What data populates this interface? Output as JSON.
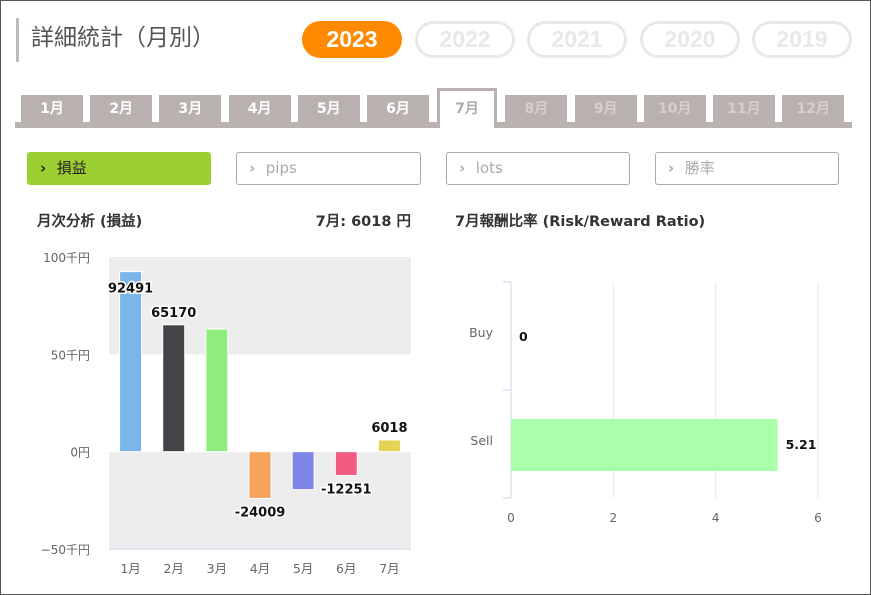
{
  "header": {
    "title": "詳細統計（月別）",
    "years": [
      "2023",
      "2022",
      "2021",
      "2020",
      "2019"
    ],
    "active_year": "2023"
  },
  "months": {
    "tabs": [
      "1月",
      "2月",
      "3月",
      "4月",
      "5月",
      "6月",
      "7月",
      "8月",
      "9月",
      "10月",
      "11月",
      "12月"
    ],
    "active": "7月"
  },
  "filters": [
    {
      "label": "損益",
      "active": true
    },
    {
      "label": "pips",
      "active": false
    },
    {
      "label": "lots",
      "active": false
    },
    {
      "label": "勝率",
      "active": false
    }
  ],
  "monthly": {
    "title": "月次分析 (損益)",
    "summary": "7月:  6018 円"
  },
  "ratio": {
    "title": "7月報酬比率 (Risk/Reward Ratio)"
  },
  "colors": {
    "accent_year": "#ff8a00",
    "filter_active": "#9ccf31",
    "tab_bg": "#b9b1b0"
  },
  "chart_data": [
    {
      "type": "bar",
      "categories": [
        "1月",
        "2月",
        "3月",
        "4月",
        "5月",
        "6月",
        "7月"
      ],
      "values": [
        92491,
        65170,
        63000,
        -24009,
        -19500,
        -12251,
        6018
      ],
      "data_labels": [
        "92491",
        "65170",
        "",
        "-24009",
        "",
        "-12251",
        "6018"
      ],
      "colors": [
        "#7cb5ec",
        "#434348",
        "#90ed7d",
        "#f7a35c",
        "#8085e9",
        "#f15c80",
        "#e4d354"
      ],
      "ylim": [
        -50000,
        100000
      ],
      "yticks": [
        {
          "value": 100000,
          "label": "100千円"
        },
        {
          "value": 50000,
          "label": "50千円"
        },
        {
          "value": 0,
          "label": "0円"
        },
        {
          "value": -50000,
          "label": "−50千円"
        }
      ],
      "grid": false,
      "bands": true
    },
    {
      "type": "bar",
      "orientation": "horizontal",
      "categories": [
        "Buy",
        "Sell"
      ],
      "values": [
        0,
        5.21
      ],
      "data_labels": [
        "0",
        "5.21"
      ],
      "color": "#aaffaa",
      "xlim": [
        0,
        6
      ],
      "xticks": [
        "0",
        "2",
        "4",
        "6"
      ],
      "grid": true
    }
  ]
}
